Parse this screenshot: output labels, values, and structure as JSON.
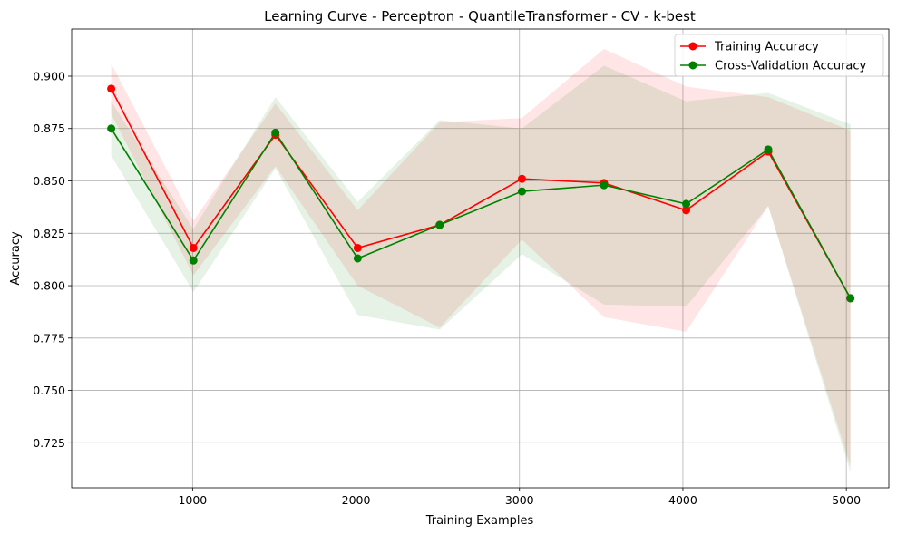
{
  "chart_data": {
    "type": "line",
    "title": "Learning Curve - Perceptron - QuantileTransformer - CV - k-best",
    "xlabel": "Training Examples",
    "ylabel": "Accuracy",
    "xlim": [
      260,
      5260
    ],
    "ylim": [
      0.7035,
      0.9225
    ],
    "xticks": [
      1000,
      2000,
      3000,
      4000,
      5000
    ],
    "yticks": [
      0.725,
      0.75,
      0.775,
      0.8,
      0.825,
      0.85,
      0.875,
      0.9
    ],
    "ytick_labels": [
      "0.725",
      "0.750",
      "0.775",
      "0.800",
      "0.825",
      "0.850",
      "0.875",
      "0.900"
    ],
    "grid": true,
    "legend_position": "top-right",
    "x": [
      502,
      1005,
      1507,
      2010,
      2512,
      3015,
      3517,
      4020,
      4522,
      5025
    ],
    "series": [
      {
        "name": "Training Accuracy",
        "color": "#ff0000",
        "band_color": "#ff0000",
        "values": [
          0.894,
          0.818,
          0.872,
          0.818,
          0.829,
          0.851,
          0.849,
          0.836,
          0.864,
          0.794
        ],
        "upper": [
          0.906,
          0.831,
          0.887,
          0.836,
          0.878,
          0.88,
          0.913,
          0.895,
          0.89,
          0.874
        ],
        "lower": [
          0.882,
          0.805,
          0.857,
          0.8,
          0.78,
          0.822,
          0.785,
          0.778,
          0.838,
          0.714
        ]
      },
      {
        "name": "Cross-Validation Accuracy",
        "color": "#008000",
        "band_color": "#008000",
        "values": [
          0.875,
          0.812,
          0.873,
          0.813,
          0.829,
          0.845,
          0.848,
          0.839,
          0.865,
          0.794
        ],
        "upper": [
          0.888,
          0.827,
          0.89,
          0.84,
          0.879,
          0.875,
          0.905,
          0.888,
          0.892,
          0.877
        ],
        "lower": [
          0.862,
          0.797,
          0.856,
          0.786,
          0.779,
          0.815,
          0.791,
          0.79,
          0.838,
          0.711
        ]
      }
    ]
  }
}
